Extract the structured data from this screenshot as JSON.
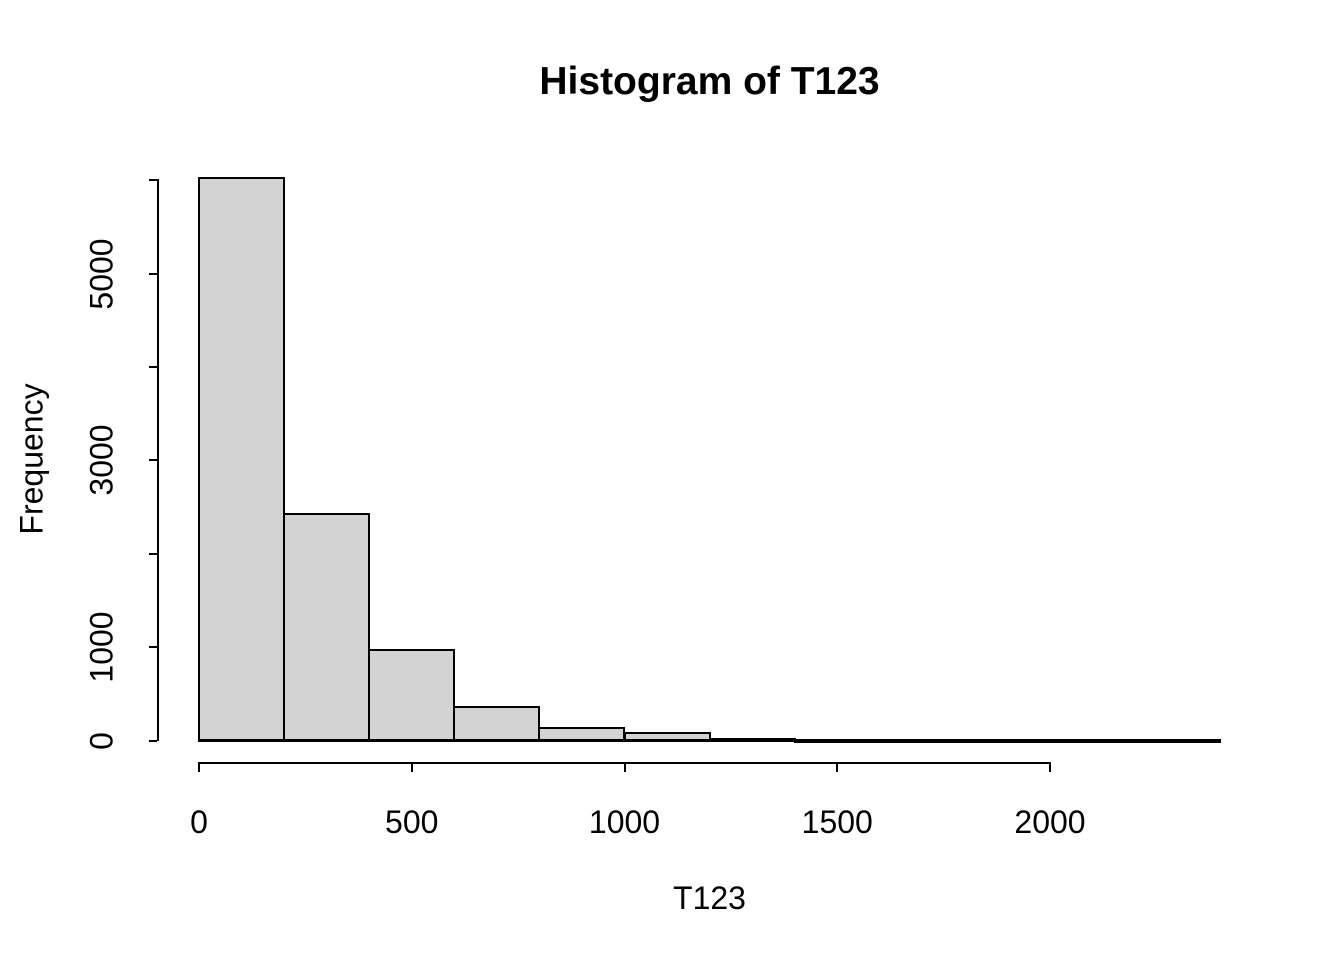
{
  "chart_data": {
    "type": "bar",
    "subtype": "histogram",
    "title": "Histogram of T123",
    "xlabel": "T123",
    "ylabel": "Frequency",
    "breaks": [
      0,
      200,
      400,
      600,
      800,
      1000,
      1200,
      1400,
      1600,
      1800,
      2000,
      2200,
      2400
    ],
    "counts": [
      6020,
      2430,
      970,
      355,
      130,
      77,
      20,
      10,
      5,
      2,
      1,
      1
    ],
    "x_ticks": [
      0,
      500,
      1000,
      1500,
      2000
    ],
    "x_tick_labels": [
      "0",
      "500",
      "1000",
      "1500",
      "2000"
    ],
    "y_ticks": [
      0,
      1000,
      2000,
      3000,
      4000,
      5000,
      6000
    ],
    "y_tick_labels": [
      "0",
      "1000",
      "",
      "3000",
      "",
      "5000",
      ""
    ],
    "xlim": [
      0,
      2400
    ],
    "ylim": [
      0,
      6020
    ],
    "grid": false,
    "legend_position": "none",
    "bar_fill": "#d3d3d3",
    "bar_border": "#000000",
    "axis_color": "#000000",
    "background": "#ffffff"
  }
}
